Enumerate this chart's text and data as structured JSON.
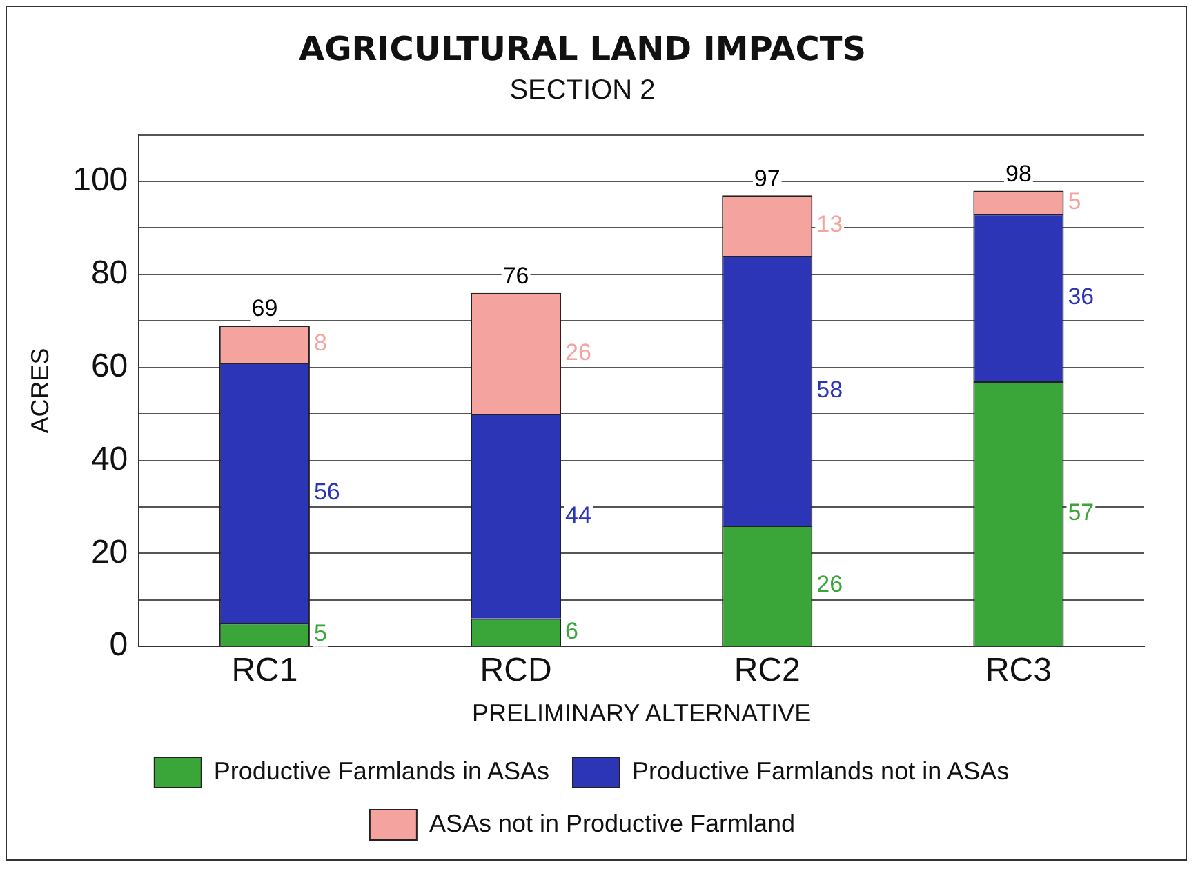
{
  "chart_data": {
    "type": "bar",
    "title": "AGRICULTURAL LAND IMPACTS",
    "subtitle": "SECTION 2",
    "xlabel": "PRELIMINARY ALTERNATIVE",
    "ylabel": "ACRES",
    "categories": [
      "RC1",
      "RCD",
      "RC2",
      "RC3"
    ],
    "series": [
      {
        "name": "Productive Farmlands in ASAs",
        "color": "#3aa63a",
        "values": [
          5,
          6,
          26,
          57
        ]
      },
      {
        "name": "Productive Farmlands not in ASAs",
        "color": "#2b35b5",
        "values": [
          56,
          44,
          58,
          36
        ]
      },
      {
        "name": "ASAs not in Productive Farmland",
        "color": "#f4a39e",
        "values": [
          8,
          26,
          13,
          5
        ]
      }
    ],
    "stacked": true,
    "data_labels": true,
    "totals": [
      "69",
      "76",
      "97",
      "98"
    ],
    "ylim": [
      0,
      110
    ],
    "yticks": [
      0,
      {
        "value": 10,
        "label": null
      },
      20,
      {
        "value": 30,
        "label": null
      },
      40,
      {
        "value": 50,
        "label": null
      },
      60,
      {
        "value": 70,
        "label": null
      },
      80,
      {
        "value": 90,
        "label": null
      },
      100,
      {
        "value": 110,
        "label": null
      }
    ],
    "grid": "y",
    "legend": "bottom"
  }
}
